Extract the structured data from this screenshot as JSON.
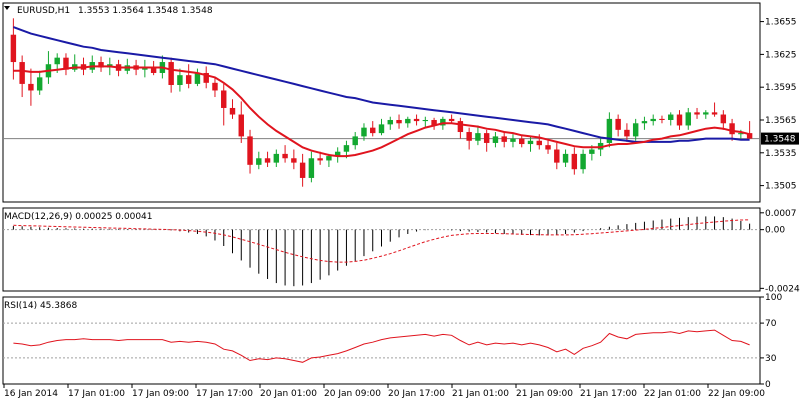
{
  "colors": {
    "background": "#ffffff",
    "grid_border": "#000000",
    "bull_candle": "#13a830",
    "bear_candle": "#e0141e",
    "ma_fast": "#e0141e",
    "ma_slow": "#1a1aa6",
    "price_line": "#808080",
    "price_tag_bg": "#000000",
    "macd_hist": "#000000",
    "macd_signal": "#e0141e",
    "rsi_line": "#e0141e",
    "level_line": "#a0a0a0"
  },
  "chart_data": [
    {
      "type": "candlestick",
      "header": {
        "symbol": "EURUSD,H1",
        "ohlc": "1.3553 1.3564 1.3548 1.3548",
        "menu_icon": "triangle-down-icon"
      },
      "current_price": "1.3548",
      "ylim": [
        1.349,
        1.3672
      ],
      "y_ticks": [
        "1.3655",
        "1.3625",
        "1.3595",
        "1.3565",
        "1.3535",
        "1.3505"
      ],
      "x_ticks": [
        "16 Jan 2014",
        "17 Jan 01:00",
        "17 Jan 09:00",
        "17 Jan 17:00",
        "20 Jan 01:00",
        "20 Jan 09:00",
        "20 Jan 17:00",
        "21 Jan 01:00",
        "21 Jan 09:00",
        "21 Jan 17:00",
        "22 Jan 01:00",
        "22 Jan 09:00"
      ],
      "candles": [
        [
          1.3643,
          1.3658,
          1.3602,
          1.3618
        ],
        [
          1.3618,
          1.3624,
          1.3586,
          1.3598
        ],
        [
          1.3598,
          1.3612,
          1.3578,
          1.3592
        ],
        [
          1.3592,
          1.361,
          1.3588,
          1.3604
        ],
        [
          1.3604,
          1.3628,
          1.3598,
          1.3616
        ],
        [
          1.3616,
          1.3626,
          1.3608,
          1.3622
        ],
        [
          1.3622,
          1.3626,
          1.3606,
          1.3611
        ],
        [
          1.3611,
          1.3625,
          1.3609,
          1.3616
        ],
        [
          1.3616,
          1.3622,
          1.3606,
          1.3611
        ],
        [
          1.3611,
          1.3624,
          1.3608,
          1.3618
        ],
        [
          1.3618,
          1.3623,
          1.3609,
          1.3613
        ],
        [
          1.3613,
          1.3622,
          1.3606,
          1.3616
        ],
        [
          1.3616,
          1.362,
          1.3605,
          1.361
        ],
        [
          1.361,
          1.3621,
          1.3607,
          1.3615
        ],
        [
          1.3615,
          1.362,
          1.3606,
          1.3611
        ],
        [
          1.3611,
          1.362,
          1.3604,
          1.3613
        ],
        [
          1.3613,
          1.3619,
          1.3606,
          1.3608
        ],
        [
          1.3608,
          1.3624,
          1.3603,
          1.3618
        ],
        [
          1.3618,
          1.3622,
          1.359,
          1.3597
        ],
        [
          1.3597,
          1.3612,
          1.3591,
          1.3606
        ],
        [
          1.3606,
          1.3616,
          1.3594,
          1.3598
        ],
        [
          1.3598,
          1.3612,
          1.3596,
          1.3608
        ],
        [
          1.3608,
          1.3614,
          1.3594,
          1.3599
        ],
        [
          1.3599,
          1.3604,
          1.3586,
          1.3592
        ],
        [
          1.3592,
          1.3598,
          1.356,
          1.3576
        ],
        [
          1.3576,
          1.3584,
          1.3566,
          1.357
        ],
        [
          1.357,
          1.3582,
          1.3544,
          1.355
        ],
        [
          1.355,
          1.3556,
          1.3516,
          1.3524
        ],
        [
          1.3524,
          1.3536,
          1.352,
          1.353
        ],
        [
          1.353,
          1.3536,
          1.3522,
          1.3526
        ],
        [
          1.3526,
          1.3538,
          1.3522,
          1.3534
        ],
        [
          1.3534,
          1.3542,
          1.3526,
          1.353
        ],
        [
          1.353,
          1.3538,
          1.352,
          1.3526
        ],
        [
          1.3526,
          1.3534,
          1.3504,
          1.3512
        ],
        [
          1.3512,
          1.3536,
          1.3508,
          1.353
        ],
        [
          1.353,
          1.3536,
          1.3524,
          1.3528
        ],
        [
          1.3528,
          1.3534,
          1.3522,
          1.3532
        ],
        [
          1.3532,
          1.354,
          1.3526,
          1.3536
        ],
        [
          1.3536,
          1.3546,
          1.353,
          1.3542
        ],
        [
          1.3542,
          1.3554,
          1.3538,
          1.355
        ],
        [
          1.355,
          1.3562,
          1.3546,
          1.3558
        ],
        [
          1.3558,
          1.3564,
          1.355,
          1.3553
        ],
        [
          1.3553,
          1.3566,
          1.3551,
          1.3561
        ],
        [
          1.3561,
          1.3568,
          1.3556,
          1.3565
        ],
        [
          1.3565,
          1.357,
          1.3557,
          1.3562
        ],
        [
          1.3562,
          1.3568,
          1.3558,
          1.3566
        ],
        [
          1.3566,
          1.357,
          1.356,
          1.3564
        ],
        [
          1.3564,
          1.3568,
          1.3558,
          1.3565
        ],
        [
          1.3565,
          1.3567,
          1.3556,
          1.356
        ],
        [
          1.356,
          1.3568,
          1.3556,
          1.3566
        ],
        [
          1.3566,
          1.357,
          1.3562,
          1.3564
        ],
        [
          1.3564,
          1.3567,
          1.3548,
          1.3554
        ],
        [
          1.3554,
          1.3558,
          1.3538,
          1.3546
        ],
        [
          1.3546,
          1.356,
          1.3542,
          1.3553
        ],
        [
          1.3553,
          1.3556,
          1.3536,
          1.3544
        ],
        [
          1.3544,
          1.3554,
          1.354,
          1.355
        ],
        [
          1.355,
          1.3554,
          1.354,
          1.3545
        ],
        [
          1.3545,
          1.3552,
          1.354,
          1.3548
        ],
        [
          1.3548,
          1.3551,
          1.354,
          1.3543
        ],
        [
          1.3543,
          1.355,
          1.3536,
          1.3546
        ],
        [
          1.3546,
          1.3552,
          1.3538,
          1.3542
        ],
        [
          1.3542,
          1.3548,
          1.3534,
          1.3538
        ],
        [
          1.3538,
          1.3544,
          1.352,
          1.3526
        ],
        [
          1.3526,
          1.3538,
          1.3522,
          1.3534
        ],
        [
          1.3534,
          1.354,
          1.3515,
          1.352
        ],
        [
          1.352,
          1.3538,
          1.3516,
          1.3534
        ],
        [
          1.3534,
          1.3542,
          1.3528,
          1.3538
        ],
        [
          1.3538,
          1.3548,
          1.3532,
          1.3544
        ],
        [
          1.3544,
          1.3572,
          1.354,
          1.3566
        ],
        [
          1.3566,
          1.357,
          1.355,
          1.3556
        ],
        [
          1.3556,
          1.3562,
          1.3545,
          1.355
        ],
        [
          1.355,
          1.3566,
          1.3546,
          1.3562
        ],
        [
          1.3562,
          1.3568,
          1.3556,
          1.3564
        ],
        [
          1.3564,
          1.357,
          1.356,
          1.3566
        ],
        [
          1.3566,
          1.3569,
          1.3562,
          1.3565
        ],
        [
          1.3565,
          1.3572,
          1.356,
          1.357
        ],
        [
          1.357,
          1.3574,
          1.3556,
          1.356
        ],
        [
          1.356,
          1.3576,
          1.3556,
          1.3572
        ],
        [
          1.3572,
          1.3576,
          1.3566,
          1.357
        ],
        [
          1.357,
          1.3574,
          1.3566,
          1.3572
        ],
        [
          1.3572,
          1.3581,
          1.3568,
          1.357
        ],
        [
          1.357,
          1.3574,
          1.3556,
          1.3562
        ],
        [
          1.3562,
          1.3566,
          1.3546,
          1.3552
        ],
        [
          1.3552,
          1.3556,
          1.3548,
          1.3553
        ],
        [
          1.3553,
          1.3564,
          1.3548,
          1.3548
        ]
      ],
      "ma_fast": [
        1.361,
        1.361,
        1.3609,
        1.3609,
        1.361,
        1.3611,
        1.3612,
        1.3613,
        1.3613,
        1.3614,
        1.3614,
        1.3614,
        1.3613,
        1.3613,
        1.3613,
        1.3613,
        1.3613,
        1.3613,
        1.3611,
        1.361,
        1.3609,
        1.3608,
        1.3606,
        1.3604,
        1.3599,
        1.3593,
        1.3585,
        1.3576,
        1.3568,
        1.3561,
        1.3555,
        1.355,
        1.3545,
        1.354,
        1.3537,
        1.3535,
        1.3533,
        1.3532,
        1.3532,
        1.3533,
        1.3535,
        1.3537,
        1.354,
        1.3544,
        1.3548,
        1.3552,
        1.3555,
        1.3558,
        1.356,
        1.3562,
        1.3562,
        1.3561,
        1.356,
        1.3559,
        1.3557,
        1.3556,
        1.3554,
        1.3553,
        1.3551,
        1.355,
        1.3549,
        1.3547,
        1.3545,
        1.3543,
        1.3541,
        1.354,
        1.354,
        1.354,
        1.3542,
        1.3543,
        1.3543,
        1.3544,
        1.3545,
        1.3547,
        1.3548,
        1.355,
        1.3551,
        1.3553,
        1.3555,
        1.3557,
        1.3558,
        1.3557,
        1.3555,
        1.3554,
        1.3552
      ],
      "ma_slow": [
        1.365,
        1.3647,
        1.3644,
        1.3642,
        1.364,
        1.3638,
        1.3636,
        1.3634,
        1.3632,
        1.3631,
        1.3629,
        1.3628,
        1.3627,
        1.3626,
        1.3625,
        1.3624,
        1.3623,
        1.3622,
        1.3621,
        1.362,
        1.3619,
        1.3618,
        1.3617,
        1.3616,
        1.3614,
        1.3612,
        1.361,
        1.3608,
        1.3606,
        1.3604,
        1.3602,
        1.36,
        1.3598,
        1.3596,
        1.3594,
        1.3592,
        1.359,
        1.3588,
        1.3586,
        1.3585,
        1.3583,
        1.3581,
        1.358,
        1.3579,
        1.3578,
        1.3577,
        1.3576,
        1.3575,
        1.3574,
        1.3573,
        1.3572,
        1.3571,
        1.357,
        1.3569,
        1.3568,
        1.3567,
        1.3566,
        1.3565,
        1.3564,
        1.3563,
        1.3562,
        1.3561,
        1.3559,
        1.3557,
        1.3555,
        1.3553,
        1.3551,
        1.3549,
        1.3548,
        1.3547,
        1.3546,
        1.3545,
        1.3545,
        1.3545,
        1.3545,
        1.3545,
        1.3546,
        1.3546,
        1.3547,
        1.3548,
        1.3548,
        1.3548,
        1.3548,
        1.3547,
        1.3547
      ]
    },
    {
      "type": "histogram",
      "header": "MACD(12,26,9) 0.00025 0.00041",
      "ylim": [
        -0.00255,
        0.0009
      ],
      "y_ticks": [
        "0.0007",
        "0.00",
        "-0.00244"
      ],
      "histogram": [
        0.00015,
        0.00014,
        0.00012,
        0.0001,
        8e-05,
        7e-05,
        6e-05,
        5e-05,
        4e-05,
        4e-05,
        4e-05,
        3e-05,
        3e-05,
        2e-05,
        2e-05,
        1e-05,
        1e-05,
        0.0,
        -3e-05,
        -7e-05,
        -0.00012,
        -0.00018,
        -0.00028,
        -0.00045,
        -0.00068,
        -0.00098,
        -0.00128,
        -0.00158,
        -0.00183,
        -0.00205,
        -0.00222,
        -0.00232,
        -0.00235,
        -0.00232,
        -0.00222,
        -0.00208,
        -0.0019,
        -0.0017,
        -0.0015,
        -0.0013,
        -0.0011,
        -0.0009,
        -0.0007,
        -0.0005,
        -0.00032,
        -0.00018,
        -8e-05,
        -2e-05,
        0.0,
        0.0,
        -3e-05,
        -6e-05,
        -8e-05,
        -0.0001,
        -0.00012,
        -0.00015,
        -0.00018,
        -0.0002,
        -0.00022,
        -0.00023,
        -0.00024,
        -0.00024,
        -0.00022,
        -0.00018,
        -0.00012,
        -6e-05,
        0.0,
        6e-05,
        0.00012,
        0.00018,
        0.00023,
        0.00028,
        0.00033,
        0.00038,
        0.00042,
        0.00046,
        0.00049,
        0.00052,
        0.00054,
        0.00055,
        0.00055,
        0.00052,
        0.00046,
        0.00036,
        0.00025
      ],
      "signal": [
        0.00018,
        0.00017,
        0.00016,
        0.00015,
        0.00014,
        0.00013,
        0.00012,
        0.00011,
        0.0001,
        9e-05,
        8e-05,
        7e-05,
        6e-05,
        5e-05,
        4e-05,
        3e-05,
        2e-05,
        1e-05,
        0.0,
        -2e-05,
        -4e-05,
        -7e-05,
        -0.0001,
        -0.00015,
        -0.00022,
        -0.0003,
        -0.0004,
        -0.0005,
        -0.00061,
        -0.00072,
        -0.00083,
        -0.00094,
        -0.00104,
        -0.00113,
        -0.00121,
        -0.00128,
        -0.00133,
        -0.00135,
        -0.00135,
        -0.00132,
        -0.00127,
        -0.00119,
        -0.0011,
        -0.001,
        -0.00088,
        -0.00075,
        -0.00062,
        -0.0005,
        -0.0004,
        -0.00031,
        -0.00024,
        -0.0002,
        -0.00017,
        -0.00016,
        -0.00016,
        -0.00016,
        -0.00017,
        -0.00018,
        -0.00019,
        -0.0002,
        -0.00021,
        -0.00022,
        -0.00022,
        -0.00022,
        -0.00021,
        -0.00019,
        -0.00017,
        -0.00014,
        -0.00011,
        -8e-05,
        -5e-05,
        -2e-05,
        1e-05,
        5e-05,
        9e-05,
        0.00013,
        0.00017,
        0.00021,
        0.00025,
        0.00029,
        0.00032,
        0.00035,
        0.00038,
        0.0004,
        0.00041
      ]
    },
    {
      "type": "line",
      "header": "RSI(14) 45.3868",
      "ylim": [
        0,
        100
      ],
      "y_ticks": [
        "100",
        "70",
        "30",
        "0"
      ],
      "levels": [
        70,
        30
      ],
      "values": [
        47,
        46,
        44,
        45,
        48,
        50,
        51,
        51,
        52,
        51,
        51,
        51,
        50,
        51,
        51,
        51,
        51,
        51,
        48,
        49,
        48,
        49,
        48,
        46,
        40,
        38,
        33,
        27,
        29,
        28,
        30,
        29,
        27,
        25,
        30,
        31,
        33,
        35,
        38,
        42,
        46,
        48,
        51,
        53,
        54,
        55,
        56,
        57,
        55,
        57,
        56,
        50,
        45,
        48,
        45,
        47,
        46,
        47,
        45,
        47,
        45,
        42,
        37,
        40,
        34,
        41,
        44,
        48,
        58,
        54,
        52,
        57,
        58,
        59,
        59,
        60,
        58,
        61,
        60,
        61,
        62,
        56,
        50,
        49,
        45
      ]
    }
  ]
}
